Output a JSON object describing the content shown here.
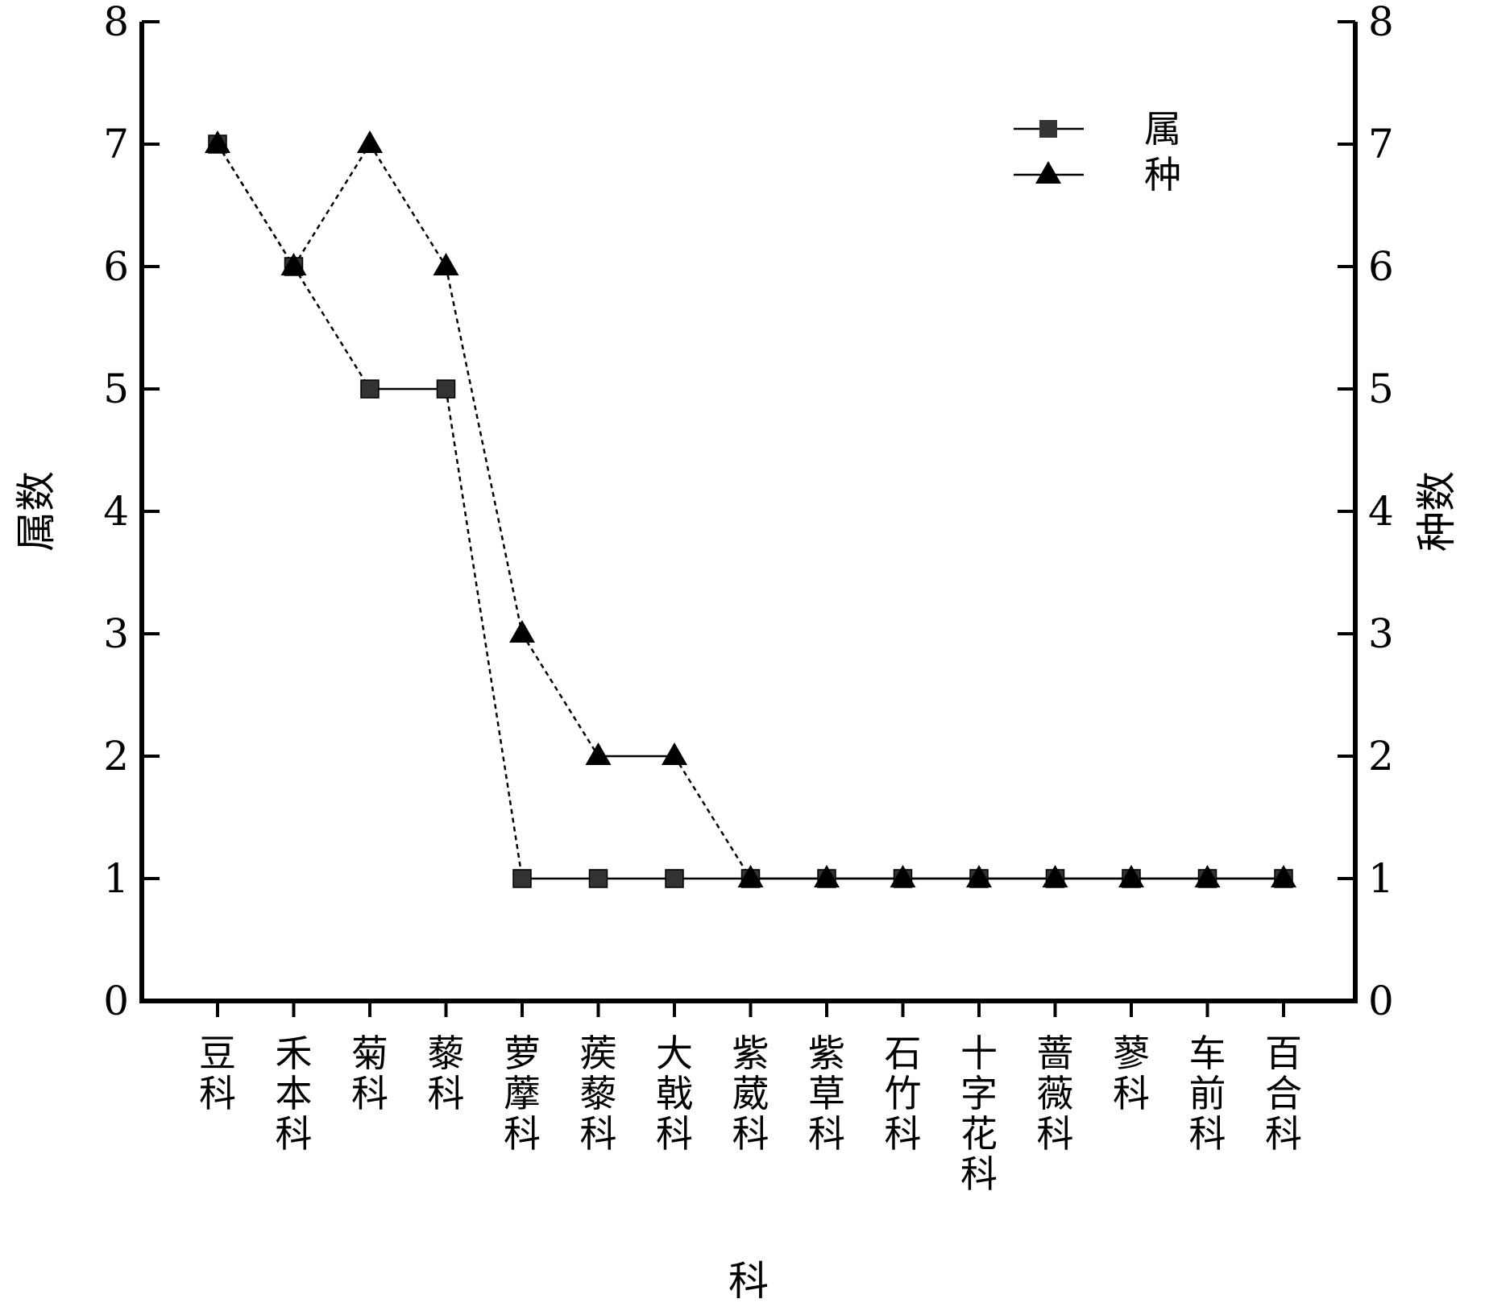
{
  "chart_data": {
    "type": "line",
    "xlabel": "科",
    "ylabel": "属数",
    "y2label": "种数",
    "ylim": [
      0,
      8
    ],
    "y2lim": [
      0,
      8
    ],
    "yticks": [
      "0",
      "1",
      "2",
      "3",
      "4",
      "5",
      "6",
      "7",
      "8"
    ],
    "categories": [
      "豆科",
      "禾本科",
      "菊科",
      "藜科",
      "萝藦科",
      "蒺藜科",
      "大戟科",
      "紫葳科",
      "紫草科",
      "石竹科",
      "十字花科",
      "蔷薇科",
      "蓼科",
      "车前科",
      "百合科"
    ],
    "series": [
      {
        "name": "属",
        "marker": "square",
        "values": [
          7,
          6,
          5,
          5,
          1,
          1,
          1,
          1,
          1,
          1,
          1,
          1,
          1,
          1,
          1
        ]
      },
      {
        "name": "种",
        "marker": "triangle",
        "values": [
          7,
          6,
          7,
          6,
          3,
          2,
          2,
          1,
          1,
          1,
          1,
          1,
          1,
          1,
          1
        ]
      }
    ],
    "legend_position": "top-right",
    "colors": {
      "square_fill": "#333333",
      "triangle_fill": "#000000",
      "line": "#000000"
    }
  }
}
